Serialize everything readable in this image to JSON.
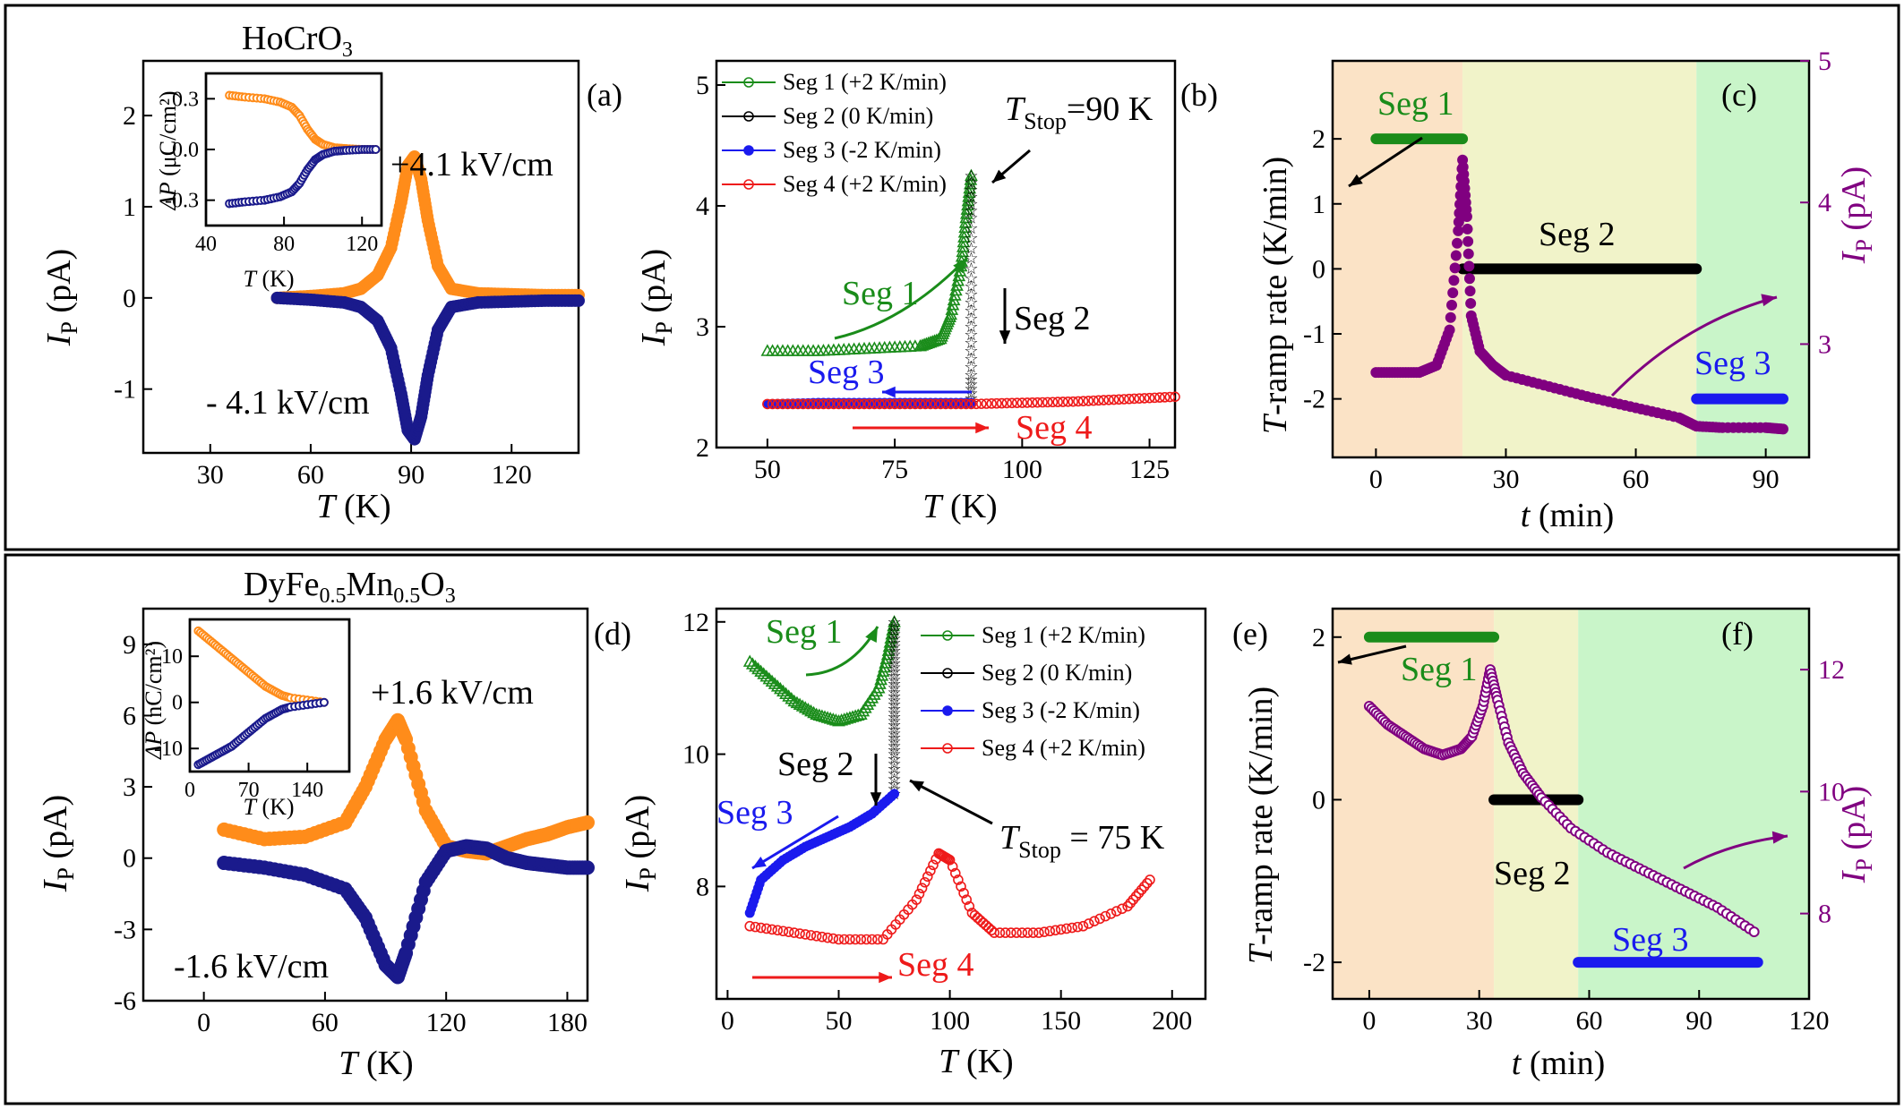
{
  "figure": {
    "colors": {
      "orange": "#ff8c1a",
      "navy": "#1a1a8c",
      "green": "#1a8c1a",
      "black": "#000000",
      "blue": "#1a1aee",
      "red": "#ee1a1a",
      "purple": "#800080",
      "bg_peach": "#fbe3c6",
      "bg_yellow": "#f1f3c9",
      "bg_green": "#c9f5c9"
    }
  },
  "chart_data": [
    {
      "panel": "a",
      "type": "line",
      "title": "HoCrO3",
      "xlabel": "T (K)",
      "ylabel": "IP (pA)",
      "xlim": [
        10,
        140
      ],
      "ylim": [
        -1.7,
        2.6
      ],
      "xticks": [
        "30",
        "60",
        "90",
        "120"
      ],
      "yticks": [
        "-1",
        "0",
        "1",
        "2"
      ],
      "series": [
        {
          "name": "+4.1 kV/cm",
          "x": [
            50,
            60,
            70,
            75,
            80,
            84,
            87,
            89,
            91,
            93,
            95,
            98,
            102,
            110,
            120,
            130,
            140
          ],
          "values": [
            0,
            0.02,
            0.05,
            0.1,
            0.25,
            0.55,
            1.05,
            1.45,
            1.55,
            1.3,
            0.85,
            0.35,
            0.1,
            0.05,
            0.04,
            0.03,
            0.03
          ]
        },
        {
          "name": "- 4.1 kV/cm",
          "x": [
            50,
            60,
            70,
            75,
            80,
            84,
            87,
            89,
            91,
            93,
            95,
            98,
            102,
            110,
            120,
            130,
            140
          ],
          "values": [
            0,
            -0.02,
            -0.05,
            -0.1,
            -0.25,
            -0.55,
            -1.05,
            -1.45,
            -1.55,
            -1.3,
            -0.85,
            -0.35,
            -0.1,
            -0.05,
            -0.04,
            -0.03,
            -0.03
          ]
        }
      ],
      "annotations": [
        "+4.1 kV/cm",
        "- 4.1 kV/cm"
      ],
      "inset": {
        "xlabel": "T (K)",
        "ylabel": "ΔP (μC/cm²)",
        "xlim": [
          40,
          130
        ],
        "ylim": [
          -0.45,
          0.45
        ],
        "xticks": [
          "40",
          "80",
          "120"
        ],
        "yticks": [
          "0.3",
          "0.0",
          "-0.3"
        ],
        "series": [
          {
            "name": "+4.1 kV/cm",
            "x": [
              52,
              60,
              70,
              78,
              84,
              88,
              92,
              96,
              100,
              106,
              112,
              120,
              127
            ],
            "values": [
              0.32,
              0.31,
              0.3,
              0.28,
              0.25,
              0.2,
              0.12,
              0.06,
              0.03,
              0.01,
              0.005,
              0,
              0
            ]
          },
          {
            "name": "- 4.1 kV/cm",
            "x": [
              52,
              60,
              70,
              78,
              84,
              88,
              92,
              96,
              100,
              106,
              112,
              120,
              127
            ],
            "values": [
              -0.32,
              -0.31,
              -0.3,
              -0.28,
              -0.25,
              -0.2,
              -0.12,
              -0.06,
              -0.03,
              -0.01,
              -0.005,
              0,
              0
            ]
          }
        ]
      }
    },
    {
      "panel": "b",
      "type": "line",
      "xlabel": "T (K)",
      "ylabel": "IP (pA)",
      "xlim": [
        40,
        130
      ],
      "ylim": [
        2,
        5.2
      ],
      "xticks": [
        "50",
        "75",
        "100",
        "125"
      ],
      "yticks": [
        "2",
        "3",
        "4",
        "5"
      ],
      "series": [
        {
          "name": "Seg 1 (+2 K/min)",
          "x": [
            50,
            60,
            70,
            80,
            84,
            86,
            88,
            89,
            90
          ],
          "values": [
            2.8,
            2.8,
            2.82,
            2.84,
            2.9,
            3.1,
            3.5,
            3.9,
            4.25
          ]
        },
        {
          "name": "Seg 2 (0 K/min)",
          "x": [
            90,
            90,
            90,
            90,
            90,
            90
          ],
          "values": [
            4.25,
            3.9,
            3.4,
            3.0,
            2.6,
            2.37
          ]
        },
        {
          "name": "Seg 3 (-2 K/min)",
          "x": [
            90,
            80,
            70,
            60,
            50
          ],
          "values": [
            2.37,
            2.37,
            2.37,
            2.37,
            2.36
          ]
        },
        {
          "name": "Seg 4 (+2 K/min)",
          "x": [
            50,
            60,
            70,
            80,
            90,
            100,
            110,
            120,
            130
          ],
          "values": [
            2.36,
            2.36,
            2.36,
            2.36,
            2.36,
            2.37,
            2.38,
            2.4,
            2.42
          ]
        }
      ],
      "annotations": [
        "TStop=90 K",
        "Seg 1",
        "Seg 2",
        "Seg 3",
        "Seg 4"
      ]
    },
    {
      "panel": "c",
      "type": "scatter",
      "xlabel": "t (min)",
      "ylabel": "T-ramp rate (K/min)",
      "y2label": "IP (pA)",
      "xlim": [
        -10,
        100
      ],
      "ylim": [
        -2.9,
        3.2
      ],
      "y2lim": [
        2.2,
        5.0
      ],
      "xticks": [
        "0",
        "30",
        "60",
        "90"
      ],
      "yticks": [
        "-2",
        "-1",
        "0",
        "1",
        "2"
      ],
      "y2ticks": [
        "3",
        "4",
        "5"
      ],
      "segments": [
        {
          "name": "Seg 1",
          "t": [
            0,
            20
          ],
          "rate": 2
        },
        {
          "name": "Seg 2",
          "t": [
            20,
            74
          ],
          "rate": 0
        },
        {
          "name": "Seg 3",
          "t": [
            74,
            94
          ],
          "rate": -2
        }
      ],
      "series": [
        {
          "name": "IP",
          "t": [
            0,
            5,
            10,
            14,
            17,
            19,
            20,
            21,
            22,
            24,
            27,
            30,
            40,
            50,
            60,
            70,
            74,
            80,
            90,
            94
          ],
          "values": [
            2.8,
            2.8,
            2.8,
            2.85,
            3.1,
            3.8,
            4.3,
            3.9,
            3.2,
            2.95,
            2.85,
            2.78,
            2.7,
            2.62,
            2.55,
            2.48,
            2.42,
            2.41,
            2.41,
            2.4
          ]
        }
      ]
    },
    {
      "panel": "d",
      "type": "line",
      "title": "DyFe0.5Mn0.5O3",
      "xlabel": "T (K)",
      "ylabel": "IP (pA)",
      "xlim": [
        -30,
        190
      ],
      "ylim": [
        -6,
        10.5
      ],
      "xticks": [
        "0",
        "60",
        "120",
        "180"
      ],
      "yticks": [
        "-6",
        "-3",
        "0",
        "3",
        "6",
        "9"
      ],
      "series": [
        {
          "name": "+1.6 kV/cm",
          "x": [
            10,
            30,
            50,
            70,
            80,
            90,
            96,
            100,
            110,
            120,
            130,
            140,
            150,
            160,
            170,
            180,
            190
          ],
          "values": [
            1.2,
            0.8,
            0.9,
            1.5,
            3,
            5,
            5.8,
            5,
            2,
            0.5,
            0.3,
            0.2,
            0.5,
            0.8,
            1,
            1.3,
            1.5
          ]
        },
        {
          "name": "-1.6 kV/cm",
          "x": [
            10,
            30,
            50,
            70,
            80,
            90,
            96,
            100,
            110,
            120,
            130,
            140,
            150,
            160,
            170,
            180,
            190
          ],
          "values": [
            -0.2,
            -0.4,
            -0.7,
            -1.3,
            -2.5,
            -4.5,
            -5,
            -4,
            -1,
            0.3,
            0.5,
            0.4,
            0,
            -0.2,
            -0.3,
            -0.4,
            -0.4
          ]
        }
      ],
      "annotations": [
        "+1.6 kV/cm",
        "-1.6 kV/cm"
      ],
      "inset": {
        "xlabel": "T (K)",
        "ylabel": "ΔP (nC/cm²)",
        "xlim": [
          0,
          190
        ],
        "ylim": [
          -15,
          18
        ],
        "xticks": [
          "0",
          "70",
          "140"
        ],
        "yticks": [
          "10",
          "0",
          "-10"
        ],
        "series": [
          {
            "name": "+1.6 kV/cm",
            "x": [
              10,
              20,
              30,
              40,
              50,
              60,
              70,
              80,
              90,
              100,
              110,
              120,
              140,
              160
            ],
            "values": [
              15.5,
              14,
              12.5,
              11,
              9.5,
              8,
              6.5,
              5,
              3.5,
              2.5,
              1.5,
              1,
              0.5,
              0
            ]
          },
          {
            "name": "-1.6 kV/cm",
            "x": [
              10,
              20,
              30,
              40,
              50,
              60,
              70,
              80,
              90,
              100,
              110,
              120,
              140,
              160
            ],
            "values": [
              -13.5,
              -12.5,
              -11.5,
              -10.5,
              -9.5,
              -8,
              -6.5,
              -5,
              -3.5,
              -2.5,
              -1.5,
              -1,
              -0.5,
              0
            ]
          }
        ]
      }
    },
    {
      "panel": "e",
      "type": "line",
      "xlabel": "T (K)",
      "ylabel": "IP (pA)",
      "xlim": [
        -5,
        215
      ],
      "ylim": [
        6.3,
        12.2
      ],
      "xticks": [
        "0",
        "50",
        "100",
        "150",
        "200"
      ],
      "yticks": [
        "8",
        "10",
        "12"
      ],
      "series": [
        {
          "name": "Seg 1 (+2 K/min)",
          "x": [
            10,
            20,
            30,
            40,
            50,
            60,
            68,
            72,
            75
          ],
          "values": [
            11.4,
            11.1,
            10.8,
            10.6,
            10.5,
            10.6,
            11,
            11.5,
            12
          ]
        },
        {
          "name": "Seg 2 (0 K/min)",
          "x": [
            75,
            75,
            75,
            75,
            75,
            75
          ],
          "values": [
            12,
            11.5,
            11,
            10.5,
            10,
            9.4
          ]
        },
        {
          "name": "Seg 3 (-2 K/min)",
          "x": [
            75,
            65,
            55,
            45,
            35,
            25,
            15,
            10
          ],
          "values": [
            9.4,
            9.1,
            8.9,
            8.75,
            8.6,
            8.4,
            8.1,
            7.6
          ]
        },
        {
          "name": "Seg 4 (+2 K/min)",
          "x": [
            10,
            30,
            50,
            70,
            85,
            95,
            100,
            110,
            120,
            140,
            160,
            180,
            190
          ],
          "values": [
            7.4,
            7.3,
            7.2,
            7.2,
            7.8,
            8.5,
            8.4,
            7.6,
            7.3,
            7.3,
            7.4,
            7.7,
            8.1
          ]
        }
      ],
      "annotations": [
        "TStop = 75 K",
        "Seg 1",
        "Seg 2",
        "Seg 3",
        "Seg 4"
      ]
    },
    {
      "panel": "f",
      "type": "scatter",
      "xlabel": "t (min)",
      "ylabel": "T-ramp rate (K/min)",
      "y2label": "IP (pA)",
      "xlim": [
        -10,
        120
      ],
      "ylim": [
        -2.45,
        2.35
      ],
      "y2lim": [
        6.6,
        13.0
      ],
      "xticks": [
        "0",
        "30",
        "60",
        "90",
        "120"
      ],
      "yticks": [
        "-2",
        "0",
        "2"
      ],
      "y2ticks": [
        "8",
        "10",
        "12"
      ],
      "segments": [
        {
          "name": "Seg 1",
          "t": [
            0,
            34
          ],
          "rate": 2
        },
        {
          "name": "Seg 2",
          "t": [
            34,
            57
          ],
          "rate": 0
        },
        {
          "name": "Seg 3",
          "t": [
            57,
            106
          ],
          "rate": -2
        }
      ],
      "series": [
        {
          "name": "IP",
          "t": [
            0,
            5,
            10,
            15,
            20,
            25,
            28,
            31,
            33,
            35,
            38,
            42,
            47,
            55,
            65,
            75,
            85,
            95,
            105
          ],
          "values": [
            11.4,
            11.1,
            10.9,
            10.7,
            10.6,
            10.7,
            10.9,
            11.4,
            12,
            11.5,
            10.8,
            10.3,
            9.9,
            9.4,
            9,
            8.7,
            8.4,
            8.1,
            7.7
          ]
        }
      ]
    }
  ],
  "text": {
    "a_title": "HoCrO",
    "a_title_sub": "3",
    "d_title": "DyFe",
    "d_title_sub1": "0.5",
    "d_title_mid": "Mn",
    "d_title_sub2": "0.5",
    "d_title_end": "O",
    "d_title_sub3": "3",
    "tag_a": "(a)",
    "tag_b": "(b)",
    "tag_c": "(c)",
    "tag_d": "(d)",
    "tag_e": "(e)",
    "tag_f": "(f)",
    "a_pos_label": "+4.1 kV/cm",
    "a_neg_label": "- 4.1 kV/cm",
    "d_pos_label": "+1.6 kV/cm",
    "d_neg_label": "-1.6 kV/cm",
    "ip_main": "I",
    "ip_sub": "P",
    "ip_unit": " (pA)",
    "t_main": "T",
    "t_unit": " (K)",
    "time_main": "t",
    "time_unit": " (min)",
    "ramp_main": "T",
    "ramp_unit": "-ramp rate (K/min)",
    "inset_a_ylab_delta": "ΔP",
    "inset_a_ylab_unit": " (μC/cm²)",
    "inset_d_ylab_delta": "ΔP",
    "inset_d_ylab_unit": " (nC/cm²)",
    "b_tstop_T": "T",
    "b_tstop_sub": "Stop",
    "b_tstop_val": "=90 K",
    "e_tstop_T": "T",
    "e_tstop_sub": "Stop",
    "e_tstop_val": " = 75 K",
    "seg1": "Seg 1",
    "seg2": "Seg 2",
    "seg3": "Seg 3",
    "seg4": "Seg 4",
    "leg1": "Seg 1 (+2 K/min)",
    "leg2": "Seg 2 (0 K/min)",
    "leg3": "Seg 3 (-2 K/min)",
    "leg4": "Seg 4 (+2 K/min)"
  }
}
